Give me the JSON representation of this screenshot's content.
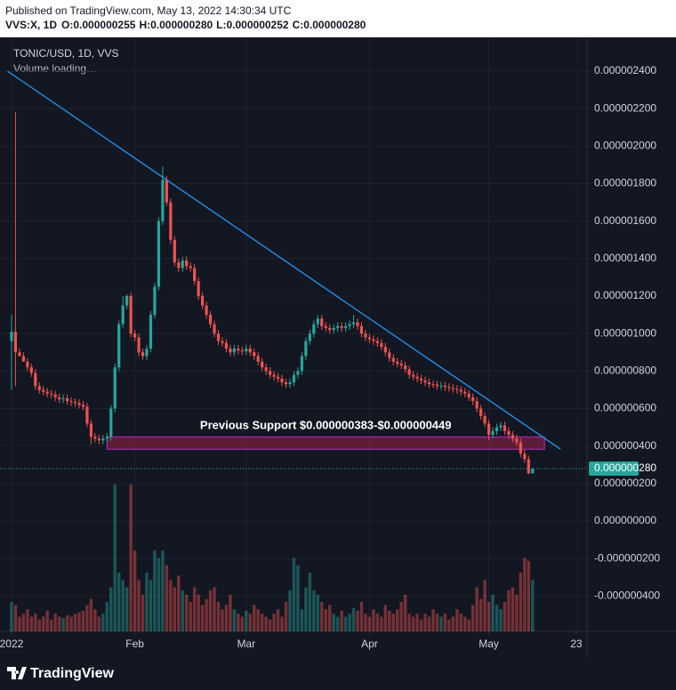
{
  "header": {
    "published": "Published on TradingView.com, May 13, 2022 14:30:34 UTC",
    "symbol": "VVS:X, 1D",
    "ohlc": [
      "O:0.000000255",
      "H:0.000000280",
      "L:0.000000252",
      "C:0.000000280"
    ]
  },
  "footer": "TradingView",
  "chart_data": {
    "type": "candlestick",
    "title": "TONIC/USD, 1D, VVS",
    "subtitle": "Volume loading…",
    "up_color": "#26a69a",
    "down_color": "#ef5350",
    "grid": true,
    "xlim": [
      -2.9,
      144.7
    ],
    "xticks": [
      {
        "value": 0,
        "label": "2022"
      },
      {
        "value": 31,
        "label": "Feb"
      },
      {
        "value": 59,
        "label": "Mar"
      },
      {
        "value": 90,
        "label": "Apr"
      },
      {
        "value": 120,
        "label": "May"
      },
      {
        "value": 142,
        "label": "23"
      }
    ],
    "ylim": [
      -5.88e-07,
      2.566e-06
    ],
    "yticks": [
      {
        "value": 2.4e-06,
        "label": "0.000002400"
      },
      {
        "value": 2.2e-06,
        "label": "0.000002200"
      },
      {
        "value": 2e-06,
        "label": "0.000002000"
      },
      {
        "value": 1.8e-06,
        "label": "0.000001800"
      },
      {
        "value": 1.6e-06,
        "label": "0.000001600"
      },
      {
        "value": 1.4e-06,
        "label": "0.000001400"
      },
      {
        "value": 1.2e-06,
        "label": "0.000001200"
      },
      {
        "value": 1e-06,
        "label": "0.000001000"
      },
      {
        "value": 8e-07,
        "label": "0.000000800"
      },
      {
        "value": 6e-07,
        "label": "0.000000600"
      },
      {
        "value": 4e-07,
        "label": "0.000000400"
      },
      {
        "value": 2e-07,
        "label": "0.000000200"
      },
      {
        "value": 0,
        "label": "0.000000000"
      },
      {
        "value": -2e-07,
        "label": "-0.000000200"
      },
      {
        "value": -4e-07,
        "label": "-0.000000400"
      }
    ],
    "x": [
      0,
      1,
      2,
      3,
      4,
      5,
      6,
      7,
      8,
      9,
      10,
      11,
      12,
      13,
      14,
      15,
      16,
      17,
      18,
      19,
      20,
      21,
      22,
      23,
      24,
      25,
      26,
      27,
      28,
      29,
      30,
      31,
      32,
      33,
      34,
      35,
      36,
      37,
      38,
      39,
      40,
      41,
      42,
      43,
      44,
      45,
      46,
      47,
      48,
      49,
      50,
      51,
      52,
      53,
      54,
      55,
      56,
      57,
      58,
      59,
      60,
      61,
      62,
      63,
      64,
      65,
      66,
      67,
      68,
      69,
      70,
      71,
      72,
      73,
      74,
      75,
      76,
      77,
      78,
      79,
      80,
      81,
      82,
      83,
      84,
      85,
      86,
      87,
      88,
      89,
      90,
      91,
      92,
      93,
      94,
      95,
      96,
      97,
      98,
      99,
      100,
      101,
      102,
      103,
      104,
      105,
      106,
      107,
      108,
      109,
      110,
      111,
      112,
      113,
      114,
      115,
      116,
      117,
      118,
      119,
      120,
      121,
      122,
      123,
      124,
      125,
      126,
      127,
      128,
      129,
      130,
      131
    ],
    "open": [
      9.6e-07,
      1.01e-06,
      9e-07,
      8.8e-07,
      8.5e-07,
      8.2e-07,
      7.9e-07,
      7.2e-07,
      7e-07,
      6.9e-07,
      6.8e-07,
      6.75e-07,
      6.6e-07,
      6.5e-07,
      6.55e-07,
      6.4e-07,
      6.35e-07,
      6.3e-07,
      6.2e-07,
      6.1e-07,
      5.2e-07,
      4.5e-07,
      4.4e-07,
      4.3e-07,
      4.4e-07,
      4.5e-07,
      6e-07,
      8.2e-07,
      1.05e-06,
      1.15e-06,
      1.2e-06,
      1e-06,
      9.8e-07,
      9e-07,
      8.8e-07,
      9.2e-07,
      1.1e-06,
      1.25e-06,
      1.6e-06,
      1.82e-06,
      1.7e-06,
      1.5e-06,
      1.38e-06,
      1.35e-06,
      1.39e-06,
      1.36e-06,
      1.35e-06,
      1.28e-06,
      1.2e-06,
      1.15e-06,
      1.1e-06,
      1.05e-06,
      1e-06,
      9.6e-07,
      9.5e-07,
      9.2e-07,
      9e-07,
      9.2e-07,
      9.1e-07,
      9.05e-07,
      9.2e-07,
      9e-07,
      8.8e-07,
      8.5e-07,
      8.2e-07,
      8e-07,
      7.8e-07,
      7.7e-07,
      7.6e-07,
      7.4e-07,
      7.3e-07,
      7.4e-07,
      7.8e-07,
      8e-07,
      8.8e-07,
      9.6e-07,
      1e-06,
      1.05e-06,
      1.08e-06,
      1.04e-06,
      1.03e-06,
      1.02e-06,
      1.03e-06,
      1.04e-06,
      1.03e-06,
      1.04e-06,
      1.05e-06,
      1.06e-06,
      1.04e-06,
      1e-06,
      9.8e-07,
      9.7e-07,
      9.6e-07,
      9.5e-07,
      9.3e-07,
      9e-07,
      8.7e-07,
      8.5e-07,
      8.4e-07,
      8.3e-07,
      8.1e-07,
      7.8e-07,
      7.7e-07,
      7.6e-07,
      7.5e-07,
      7.4e-07,
      7.3e-07,
      7.28e-07,
      7.2e-07,
      7.22e-07,
      7.15e-07,
      7.1e-07,
      7.05e-07,
      7e-07,
      6.9e-07,
      6.8e-07,
      6.6e-07,
      6.4e-07,
      6e-07,
      5.6e-07,
      5.2e-07,
      4.6e-07,
      4.8e-07,
      5e-07,
      5.1e-07,
      4.8e-07,
      4.6e-07,
      4.4e-07,
      4.2e-07,
      3.6e-07,
      3.3e-07,
      2.55e-07
    ],
    "high": [
      1.1e-06,
      2.18e-06,
      9.2e-07,
      9e-07,
      8.7e-07,
      8.4e-07,
      8.1e-07,
      7.4e-07,
      7.2e-07,
      7.1e-07,
      7e-07,
      6.95e-07,
      6.8e-07,
      6.75e-07,
      6.75e-07,
      6.6e-07,
      6.55e-07,
      6.5e-07,
      6.4e-07,
      6.3e-07,
      5.4e-07,
      4.7e-07,
      4.6e-07,
      4.6e-07,
      4.7e-07,
      6.2e-07,
      8.4e-07,
      1.07e-06,
      1.2e-06,
      1.21e-06,
      1.22e-06,
      1.02e-06,
      1e-06,
      9.2e-07,
      9.4e-07,
      1.12e-06,
      1.27e-06,
      1.62e-06,
      1.89e-06,
      1.84e-06,
      1.72e-06,
      1.52e-06,
      1.4e-06,
      1.41e-06,
      1.41e-06,
      1.38e-06,
      1.37e-06,
      1.3e-06,
      1.22e-06,
      1.17e-06,
      1.12e-06,
      1.07e-06,
      1.02e-06,
      9.8e-07,
      9.7e-07,
      9.4e-07,
      9.4e-07,
      9.4e-07,
      9.3e-07,
      9.4e-07,
      9.4e-07,
      9.2e-07,
      9e-07,
      8.7e-07,
      8.4e-07,
      8.2e-07,
      8e-07,
      7.9e-07,
      7.8e-07,
      7.6e-07,
      7.6e-07,
      8e-07,
      8.2e-07,
      9e-07,
      9.8e-07,
      1.02e-06,
      1.07e-06,
      1.1e-06,
      1.1e-06,
      1.06e-06,
      1.05e-06,
      1.05e-06,
      1.06e-06,
      1.06e-06,
      1.06e-06,
      1.07e-06,
      1.1e-06,
      1.08e-06,
      1.06e-06,
      1.02e-06,
      1e-06,
      9.9e-07,
      9.8e-07,
      9.7e-07,
      9.5e-07,
      9.2e-07,
      8.9e-07,
      8.7e-07,
      8.6e-07,
      8.5e-07,
      8.3e-07,
      8e-07,
      7.9e-07,
      7.8e-07,
      7.7e-07,
      7.6e-07,
      7.5e-07,
      7.48e-07,
      7.42e-07,
      7.42e-07,
      7.35e-07,
      7.3e-07,
      7.25e-07,
      7.2e-07,
      7.1e-07,
      7e-07,
      6.8e-07,
      6.6e-07,
      6.2e-07,
      5.8e-07,
      5.4e-07,
      5e-07,
      5.2e-07,
      5.3e-07,
      5.3e-07,
      5e-07,
      4.8e-07,
      4.6e-07,
      4.4e-07,
      3.8e-07,
      3.5e-07,
      2.8e-07
    ],
    "low": [
      7e-07,
      7.2e-07,
      8.8e-07,
      8.6e-07,
      8e-07,
      7.7e-07,
      7e-07,
      6.8e-07,
      6.7e-07,
      6.6e-07,
      6.55e-07,
      6.4e-07,
      6.3e-07,
      6.3e-07,
      6.2e-07,
      6.15e-07,
      6.1e-07,
      6e-07,
      5.9e-07,
      5e-07,
      4.1e-07,
      4.2e-07,
      4.1e-07,
      4.1e-07,
      4.2e-07,
      4.3e-07,
      5.8e-07,
      8e-07,
      1.03e-06,
      1.13e-06,
      9.8e-07,
      9.6e-07,
      8.8e-07,
      8.6e-07,
      8.6e-07,
      9e-07,
      1.08e-06,
      1.23e-06,
      1.58e-06,
      1.68e-06,
      1.48e-06,
      1.36e-06,
      1.33e-06,
      1.33e-06,
      1.34e-06,
      1.33e-06,
      1.26e-06,
      1.18e-06,
      1.13e-06,
      1.08e-06,
      1.03e-06,
      9.8e-07,
      9.4e-07,
      9.3e-07,
      9e-07,
      8.8e-07,
      8.8e-07,
      8.9e-07,
      8.85e-07,
      8.85e-07,
      8.8e-07,
      8.6e-07,
      8.3e-07,
      8e-07,
      7.8e-07,
      7.6e-07,
      7.5e-07,
      7.4e-07,
      7.2e-07,
      7.1e-07,
      7.1e-07,
      7.2e-07,
      7.6e-07,
      7.8e-07,
      8.6e-07,
      9.4e-07,
      9.8e-07,
      1.03e-06,
      1.02e-06,
      1.01e-06,
      1e-06,
      1e-06,
      1.01e-06,
      1.01e-06,
      1.01e-06,
      1.02e-06,
      1.03e-06,
      1.02e-06,
      9.8e-07,
      9.6e-07,
      9.5e-07,
      9.4e-07,
      9.3e-07,
      9.1e-07,
      8.8e-07,
      8.5e-07,
      8.3e-07,
      8.2e-07,
      8.1e-07,
      7.9e-07,
      7.6e-07,
      7.5e-07,
      7.4e-07,
      7.3e-07,
      7.2e-07,
      7.1e-07,
      7.1e-07,
      7e-07,
      7e-07,
      6.95e-07,
      6.9e-07,
      6.85e-07,
      6.8e-07,
      6.7e-07,
      6.6e-07,
      6.4e-07,
      6.2e-07,
      5.8e-07,
      5.4e-07,
      5e-07,
      4.3e-07,
      4.4e-07,
      4.6e-07,
      4.8e-07,
      4.6e-07,
      4.4e-07,
      4.2e-07,
      4e-07,
      3.4e-07,
      3.1e-07,
      2.5e-07,
      2.52e-07
    ],
    "close": [
      1.01e-06,
      9e-07,
      8.8e-07,
      8.5e-07,
      8.2e-07,
      7.9e-07,
      7.2e-07,
      7e-07,
      6.9e-07,
      6.8e-07,
      6.75e-07,
      6.6e-07,
      6.5e-07,
      6.55e-07,
      6.4e-07,
      6.35e-07,
      6.3e-07,
      6.2e-07,
      6.1e-07,
      5.2e-07,
      4.5e-07,
      4.4e-07,
      4.3e-07,
      4.4e-07,
      4.5e-07,
      6e-07,
      8.2e-07,
      1.05e-06,
      1.15e-06,
      1.2e-06,
      1e-06,
      9.8e-07,
      9e-07,
      8.8e-07,
      9.2e-07,
      1.1e-06,
      1.25e-06,
      1.6e-06,
      1.82e-06,
      1.7e-06,
      1.5e-06,
      1.38e-06,
      1.35e-06,
      1.39e-06,
      1.36e-06,
      1.35e-06,
      1.28e-06,
      1.2e-06,
      1.15e-06,
      1.1e-06,
      1.05e-06,
      1e-06,
      9.6e-07,
      9.5e-07,
      9.2e-07,
      9e-07,
      9.2e-07,
      9.1e-07,
      9.05e-07,
      9.2e-07,
      9e-07,
      8.8e-07,
      8.5e-07,
      8.2e-07,
      8e-07,
      7.8e-07,
      7.7e-07,
      7.6e-07,
      7.4e-07,
      7.3e-07,
      7.4e-07,
      7.8e-07,
      8e-07,
      8.8e-07,
      9.6e-07,
      1e-06,
      1.05e-06,
      1.08e-06,
      1.04e-06,
      1.03e-06,
      1.02e-06,
      1.03e-06,
      1.04e-06,
      1.03e-06,
      1.04e-06,
      1.05e-06,
      1.06e-06,
      1.04e-06,
      1e-06,
      9.8e-07,
      9.7e-07,
      9.6e-07,
      9.5e-07,
      9.3e-07,
      9e-07,
      8.7e-07,
      8.5e-07,
      8.4e-07,
      8.3e-07,
      8.1e-07,
      7.8e-07,
      7.7e-07,
      7.6e-07,
      7.5e-07,
      7.4e-07,
      7.3e-07,
      7.28e-07,
      7.2e-07,
      7.22e-07,
      7.15e-07,
      7.1e-07,
      7.05e-07,
      7e-07,
      6.9e-07,
      6.8e-07,
      6.6e-07,
      6.4e-07,
      6e-07,
      5.6e-07,
      5.2e-07,
      4.6e-07,
      4.8e-07,
      5e-07,
      5.1e-07,
      4.8e-07,
      4.6e-07,
      4.4e-07,
      4.2e-07,
      3.6e-07,
      3.3e-07,
      2.55e-07,
      2.8e-07
    ],
    "volume": [
      20,
      18,
      10,
      12,
      15,
      10,
      12,
      8,
      10,
      14,
      8,
      12,
      10,
      9,
      11,
      10,
      12,
      13,
      14,
      18,
      22,
      15,
      10,
      12,
      20,
      30,
      100,
      40,
      35,
      30,
      100,
      55,
      35,
      25,
      40,
      35,
      55,
      50,
      55,
      45,
      35,
      30,
      38,
      28,
      25,
      20,
      30,
      25,
      18,
      22,
      28,
      30,
      20,
      15,
      18,
      25,
      15,
      12,
      10,
      14,
      12,
      18,
      15,
      12,
      10,
      8,
      12,
      15,
      10,
      20,
      28,
      50,
      45,
      15,
      30,
      40,
      28,
      25,
      20,
      15,
      18,
      12,
      10,
      14,
      10,
      12,
      16,
      14,
      20,
      12,
      10,
      15,
      12,
      10,
      18,
      14,
      12,
      15,
      20,
      25,
      12,
      10,
      12,
      8,
      12,
      10,
      15,
      12,
      10,
      12,
      8,
      10,
      15,
      12,
      10,
      8,
      18,
      30,
      22,
      35,
      20,
      25,
      18,
      15,
      20,
      28,
      30,
      25,
      40,
      50,
      48,
      35
    ],
    "trendline": {
      "color": "#2196f3",
      "x": [
        -1,
        138
      ],
      "values": [
        2.4e-06,
        3.84e-07
      ]
    },
    "support_zone": {
      "label": "Previous Support $0.000000383-$0.000000449",
      "x": [
        24,
        134
      ],
      "values": [
        3.83e-07,
        4.49e-07
      ]
    },
    "last_price_label": "0.000000280"
  }
}
